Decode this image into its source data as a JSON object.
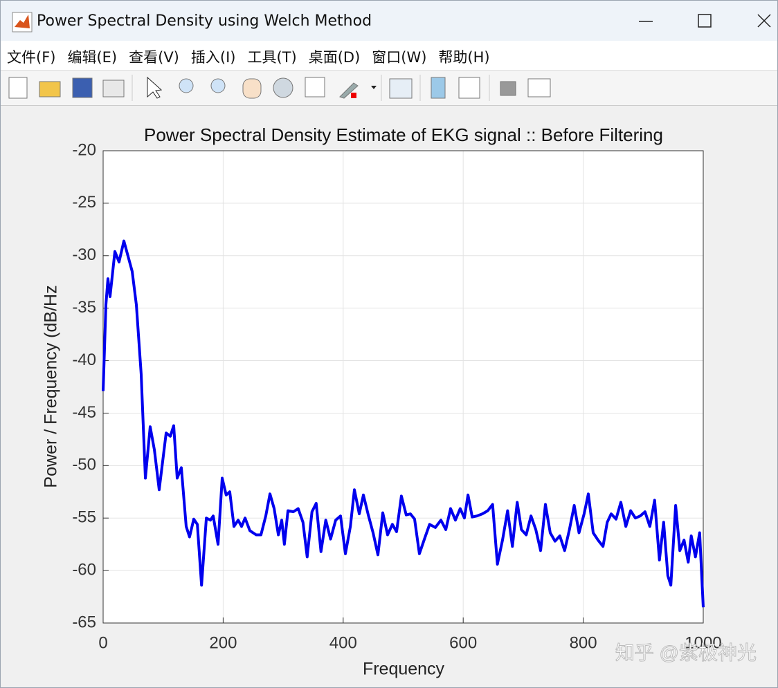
{
  "window": {
    "title": "Power Spectral Density using Welch Method"
  },
  "menu": [
    "文件(F)",
    "编辑(E)",
    "查看(V)",
    "插入(I)",
    "工具(T)",
    "桌面(D)",
    "窗口(W)",
    "帮助(H)"
  ],
  "chart_data": {
    "type": "line",
    "title": "Power Spectral Density Estimate of EKG signal :: Before Filtering",
    "xlabel": "Frequency",
    "ylabel": "Power / Frequency (dB/Hz",
    "x": [
      0,
      4.6,
      8,
      11.5,
      19.6,
      26.5,
      34.6,
      48.4,
      55.4,
      63.4,
      70.4,
      78.4,
      85.4,
      93.4,
      105,
      112,
      117.6,
      123.4,
      130.3,
      138.4,
      144,
      151,
      157,
      164,
      172,
      178.8,
      183.4,
      191.5,
      198.4,
      205,
      211,
      218,
      225,
      230.7,
      236.5,
      244.5,
      255,
      263,
      271,
      278,
      285,
      292,
      297.6,
      302,
      308,
      317,
      325,
      333,
      340,
      348,
      355,
      363,
      371,
      379,
      387.5,
      395.6,
      403.7,
      412,
      418.7,
      426.8,
      433.7,
      441.8,
      449.8,
      457.9,
      466,
      474,
      482,
      489,
      497,
      505,
      512,
      519,
      527,
      536,
      544,
      553.6,
      562.9,
      571,
      579,
      587,
      595,
      602,
      608,
      615,
      623,
      632,
      641,
      649,
      657,
      665.5,
      674,
      682,
      690,
      697,
      705,
      713,
      721,
      729,
      737,
      745,
      753,
      761,
      769,
      777,
      785,
      793,
      801.5,
      808.5,
      816.6,
      824.7,
      833,
      840,
      846.6,
      854.7,
      862.7,
      871,
      879,
      887,
      895,
      903,
      911,
      919,
      927,
      934,
      941,
      946,
      954,
      961,
      968,
      975,
      980,
      987,
      994,
      1000
    ],
    "values": [
      -42.9,
      -34.7,
      -32.2,
      -33.9,
      -29.6,
      -30.6,
      -28.6,
      -31.5,
      -34.7,
      -41.3,
      -51.2,
      -46.3,
      -48.5,
      -52.3,
      -46.9,
      -47.2,
      -46.2,
      -51.2,
      -50.2,
      -55.8,
      -56.8,
      -55.1,
      -55.6,
      -61.4,
      -55,
      -55.2,
      -54.8,
      -57.5,
      -51.2,
      -52.8,
      -52.5,
      -55.8,
      -55.2,
      -55.8,
      -55,
      -56.2,
      -56.6,
      -56.6,
      -54.8,
      -52.7,
      -54.1,
      -56.6,
      -55.2,
      -57.5,
      -54.3,
      -54.4,
      -54.1,
      -55.4,
      -58.7,
      -54.4,
      -53.6,
      -58.2,
      -55.2,
      -57,
      -55.2,
      -54.8,
      -58.4,
      -55.8,
      -52.3,
      -54.6,
      -52.8,
      -54.7,
      -56.4,
      -58.5,
      -54.5,
      -56.6,
      -55.6,
      -56.3,
      -52.9,
      -54.7,
      -54.6,
      -55.1,
      -58.4,
      -56.9,
      -55.6,
      -55.9,
      -55.2,
      -56.1,
      -54.1,
      -55.2,
      -54.1,
      -55,
      -52.8,
      -54.9,
      -54.8,
      -54.6,
      -54.3,
      -53.7,
      -59.4,
      -57.1,
      -54.3,
      -57.7,
      -53.5,
      -56.1,
      -56.6,
      -54.8,
      -56.1,
      -58.1,
      -53.7,
      -56.4,
      -57.2,
      -56.7,
      -58.1,
      -56.1,
      -53.8,
      -56.4,
      -54.6,
      -52.7,
      -56.4,
      -57.1,
      -57.7,
      -55.4,
      -54.6,
      -55.1,
      -53.5,
      -55.8,
      -54.3,
      -55,
      -54.8,
      -54.4,
      -55.8,
      -53.3,
      -59,
      -55.4,
      -60.5,
      -61.4,
      -53.8,
      -58.1,
      -57.1,
      -59.2,
      -56.7,
      -58.7,
      -56.4,
      -63.5
    ],
    "color": "#0000ee",
    "xlim": [
      0,
      1000
    ],
    "ylim": [
      -65,
      -20
    ],
    "xticks": [
      0,
      200,
      400,
      600,
      800,
      1000
    ],
    "yticks": [
      -65,
      -60,
      -55,
      -50,
      -45,
      -40,
      -35,
      -30,
      -25,
      -20
    ],
    "grid": true
  },
  "watermark": "知乎 @紫极神光"
}
